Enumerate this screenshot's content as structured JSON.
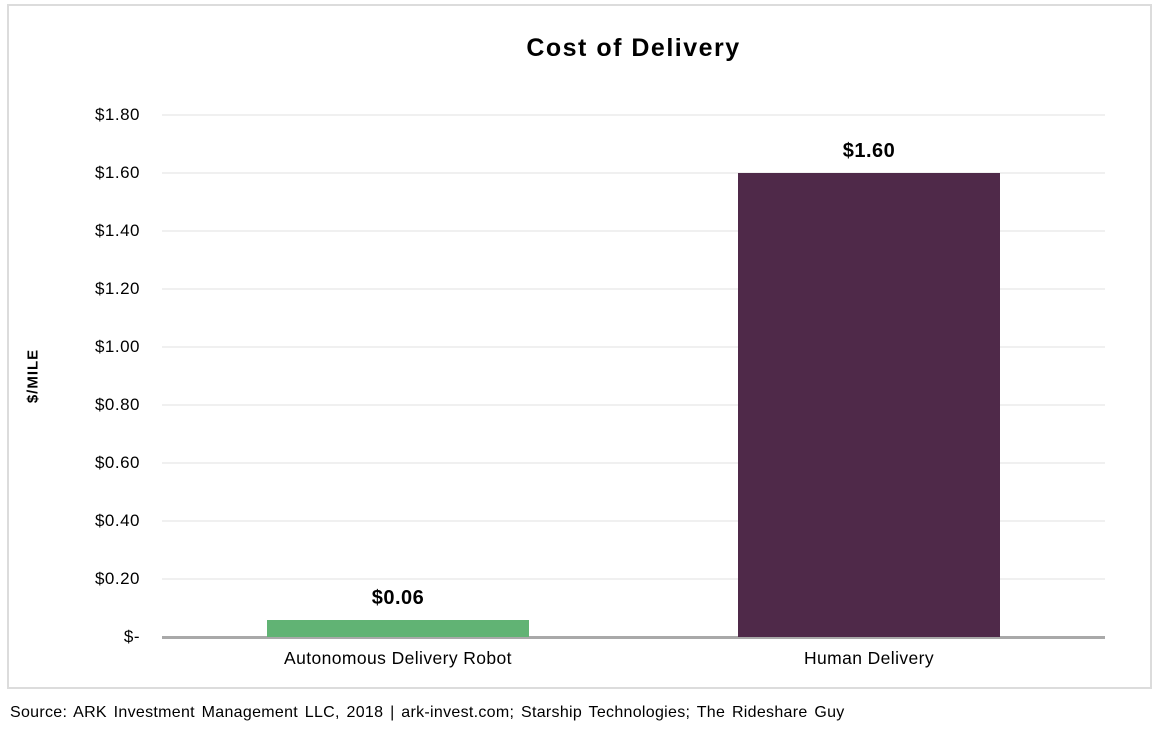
{
  "title": "Cost of Delivery",
  "source": "Source: ARK Investment Management LLC, 2018 | ark-invest.com; Starship Technologies; The Rideshare Guy",
  "chart_data": {
    "type": "bar",
    "title": "Cost of Delivery",
    "xlabel": "",
    "ylabel": "$/MILE",
    "categories": [
      "Autonomous Delivery Robot",
      "Human Delivery"
    ],
    "values": [
      0.06,
      1.6
    ],
    "data_labels": [
      "$0.06",
      "$1.60"
    ],
    "bar_colors": [
      "#61b374",
      "#4f2949"
    ],
    "ylim": [
      0,
      1.8
    ],
    "y_ticks": [
      {
        "label": "$1.80",
        "value": 1.8
      },
      {
        "label": "$1.60",
        "value": 1.6
      },
      {
        "label": "$1.40",
        "value": 1.4
      },
      {
        "label": "$1.20",
        "value": 1.2
      },
      {
        "label": "$1.00",
        "value": 1.0
      },
      {
        "label": "$0.80",
        "value": 0.8
      },
      {
        "label": "$0.60",
        "value": 0.6
      },
      {
        "label": "$0.40",
        "value": 0.4
      },
      {
        "label": "$0.20",
        "value": 0.2
      },
      {
        "label": "$-",
        "value": 0.0
      }
    ],
    "grid": true,
    "gridline_color": "#f0f0f0",
    "axis_line_color": "#a9a9a9",
    "legend": "none"
  }
}
